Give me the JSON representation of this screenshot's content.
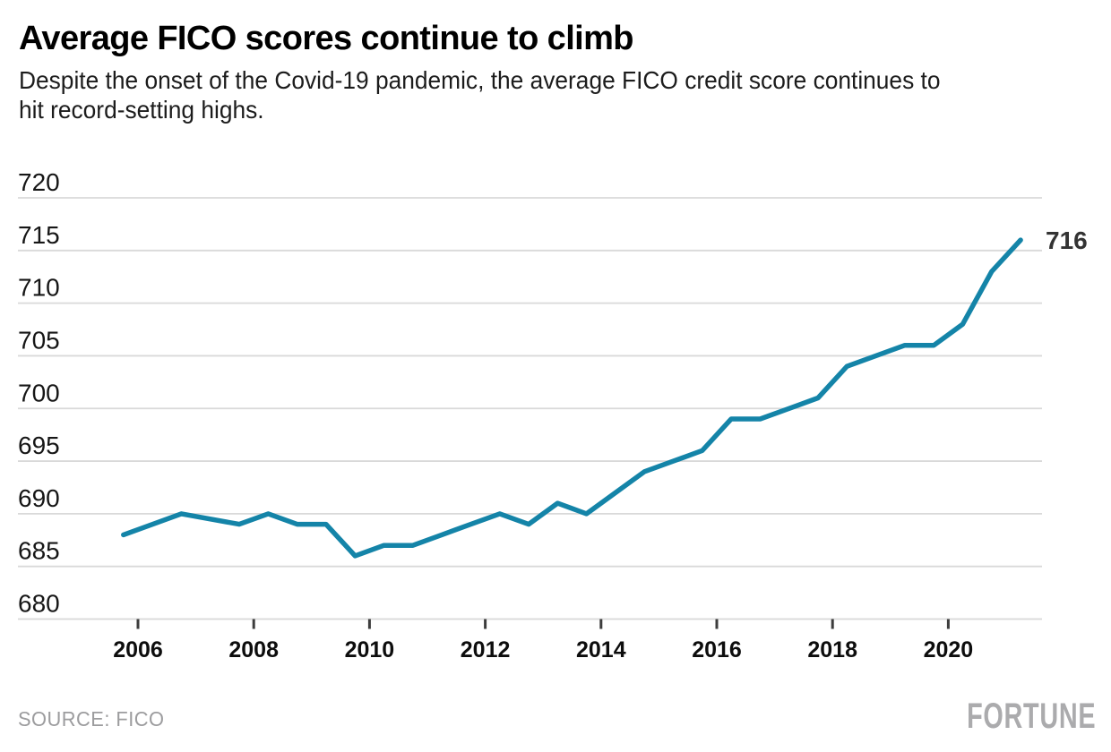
{
  "header": {
    "title": "Average FICO scores continue to climb",
    "subtitle_lines": [
      "Despite the onset of the Covid-19 pandemic, the average FICO credit score continues to",
      "hit record-setting highs."
    ]
  },
  "chart_data": {
    "type": "line",
    "title": "Average FICO scores continue to climb",
    "series": [
      {
        "name": "Average FICO score",
        "x": [
          2005.75,
          2006.75,
          2007.75,
          2008.25,
          2008.75,
          2009.25,
          2009.75,
          2010.25,
          2010.75,
          2011.25,
          2011.75,
          2012.25,
          2012.75,
          2013.25,
          2013.75,
          2014.25,
          2014.75,
          2015.25,
          2015.75,
          2016.25,
          2016.75,
          2017.25,
          2017.75,
          2018.25,
          2018.75,
          2019.25,
          2019.75,
          2020.25,
          2020.75,
          2021.25
        ],
        "values": [
          688,
          690,
          689,
          690,
          689,
          689,
          686,
          687,
          687,
          688,
          689,
          690,
          689,
          691,
          690,
          692,
          694,
          695,
          696,
          699,
          699,
          700,
          701,
          704,
          705,
          706,
          706,
          708,
          713,
          716
        ]
      }
    ],
    "xticks": [
      2006,
      2008,
      2010,
      2012,
      2014,
      2016,
      2018,
      2020
    ],
    "yticks": [
      720,
      715,
      710,
      705,
      700,
      695,
      690,
      685,
      680
    ],
    "ylim": [
      680,
      720
    ],
    "xlim": [
      2005.75,
      2021.25
    ],
    "grid": "horizontal",
    "legend": "none",
    "end_label": "716",
    "line_color": "#1484a8",
    "grid_color": "#d9d9d9",
    "tick_color": "#3d3d3d"
  },
  "footer": {
    "source": "SOURCE: FICO",
    "brand": "FORTUNE"
  }
}
